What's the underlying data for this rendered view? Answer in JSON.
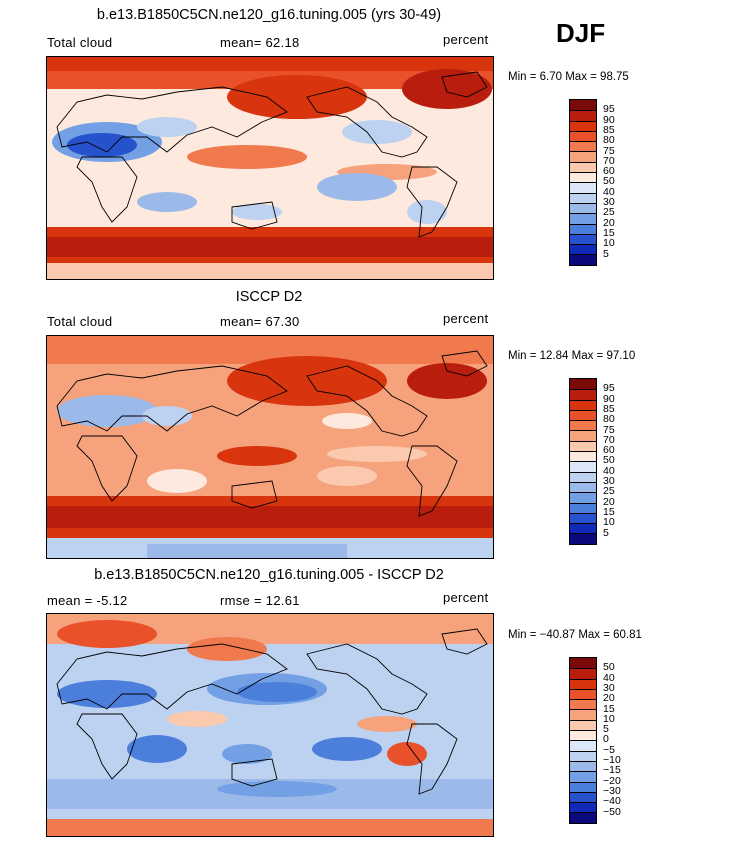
{
  "season": "DJF",
  "panels": [
    {
      "title": "b.e13.B1850C5CN.ne120_g16.tuning.005 (yrs 30-49)",
      "left_label": "Total cloud",
      "center_label": "mean=  62.18",
      "right_label": "percent",
      "minmax": "Min =    6.70  Max =   98.75",
      "colorbar": {
        "labels": [
          "95",
          "90",
          "85",
          "80",
          "75",
          "70",
          "60",
          "50",
          "40",
          "30",
          "25",
          "20",
          "15",
          "10",
          "5"
        ],
        "colors": [
          "#7a0a0a",
          "#b81d0d",
          "#d8340d",
          "#e8512a",
          "#f0794e",
          "#f6a27c",
          "#fbc9ae",
          "#fde9dd",
          "#dce8f7",
          "#bcd2f0",
          "#9bbaea",
          "#739fe4",
          "#4b7fdb",
          "#2652cd",
          "#0f29b8",
          "#0a0a7e"
        ]
      }
    },
    {
      "title": "ISCCP D2",
      "left_label": "Total cloud",
      "center_label": "mean=  67.30",
      "right_label": "percent",
      "minmax": "Min =   12.84  Max =   97.10",
      "colorbar": {
        "labels": [
          "95",
          "90",
          "85",
          "80",
          "75",
          "70",
          "60",
          "50",
          "40",
          "30",
          "25",
          "20",
          "15",
          "10",
          "5"
        ],
        "colors": [
          "#7a0a0a",
          "#b81d0d",
          "#d8340d",
          "#e8512a",
          "#f0794e",
          "#f6a27c",
          "#fbc9ae",
          "#fde9dd",
          "#dce8f7",
          "#bcd2f0",
          "#9bbaea",
          "#739fe4",
          "#4b7fdb",
          "#2652cd",
          "#0f29b8",
          "#0a0a7e"
        ]
      }
    },
    {
      "title": "b.e13.B1850C5CN.ne120_g16.tuning.005 - ISCCP D2",
      "left_label": "mean =   -5.12",
      "center_label": "rmse =   12.61",
      "right_label": "percent",
      "minmax": "Min = −40.87  Max =   60.81",
      "colorbar": {
        "labels": [
          "50",
          "40",
          "30",
          "20",
          "15",
          "10",
          "5",
          "0",
          "−5",
          "−10",
          "−15",
          "−20",
          "−30",
          "−40",
          "−50"
        ],
        "colors": [
          "#7a0a0a",
          "#b81d0d",
          "#d8340d",
          "#e8512a",
          "#f0794e",
          "#f6a27c",
          "#fbc9ae",
          "#fde9dd",
          "#dce8f7",
          "#bcd2f0",
          "#9bbaea",
          "#739fe4",
          "#4b7fdb",
          "#2652cd",
          "#0f29b8",
          "#0a0a7e"
        ]
      }
    }
  ]
}
